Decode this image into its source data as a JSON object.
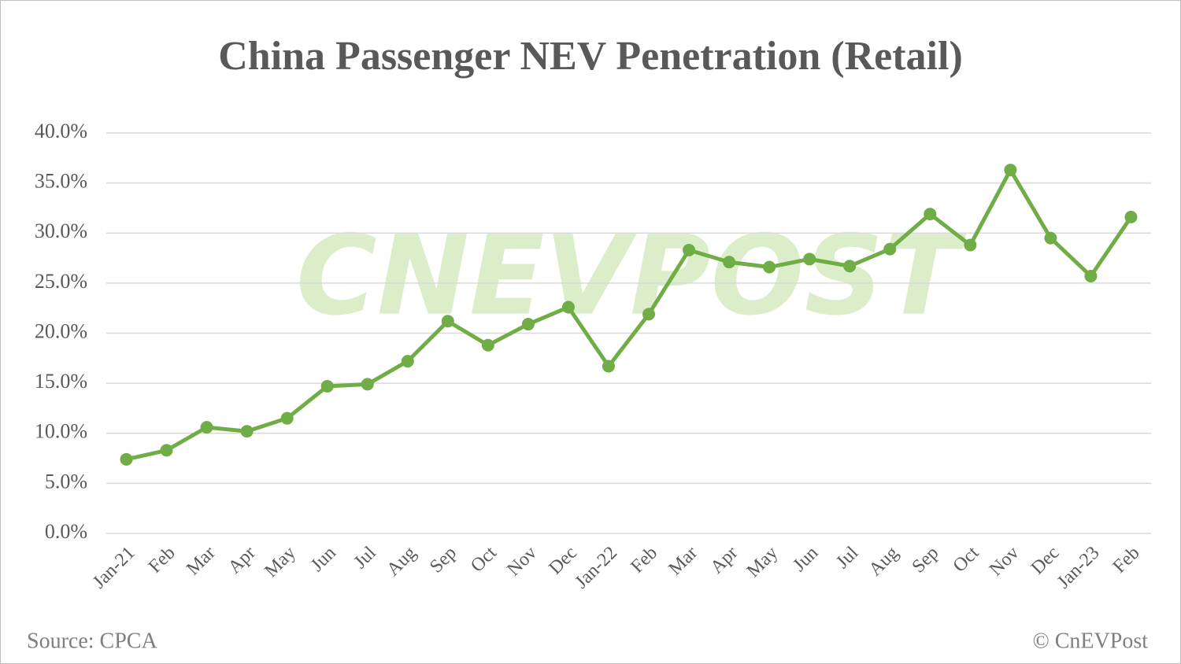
{
  "chart_data": {
    "type": "line",
    "title": "China Passenger NEV Penetration (Retail)",
    "watermark": "CNEVPOST",
    "source": "Source: CPCA",
    "credit": "© CnEVPost",
    "categories": [
      "Jan-21",
      "Feb",
      "Mar",
      "Apr",
      "May",
      "Jun",
      "Jul",
      "Aug",
      "Sep",
      "Oct",
      "Nov",
      "Dec",
      "Jan-22",
      "Feb",
      "Mar",
      "Apr",
      "May",
      "Jun",
      "Jul",
      "Aug",
      "Sep",
      "Oct",
      "Nov",
      "Dec",
      "Jan-23",
      "Feb"
    ],
    "series": [
      {
        "color": "#70ad47",
        "values": [
          7.4,
          8.3,
          10.6,
          10.2,
          11.5,
          14.7,
          14.9,
          17.2,
          21.2,
          18.8,
          20.9,
          22.6,
          16.7,
          21.9,
          28.3,
          27.1,
          26.6,
          27.4,
          26.7,
          28.4,
          31.9,
          28.8,
          36.3,
          29.5,
          25.7,
          31.6
        ]
      }
    ],
    "ylim": [
      0,
      40
    ],
    "yticks": [
      {
        "value": 0,
        "label": "0.0%"
      },
      {
        "value": 5,
        "label": "5.0%"
      },
      {
        "value": 10,
        "label": "10.0%"
      },
      {
        "value": 15,
        "label": "15.0%"
      },
      {
        "value": 20,
        "label": "20.0%"
      },
      {
        "value": 25,
        "label": "25.0%"
      },
      {
        "value": 30,
        "label": "30.0%"
      },
      {
        "value": 35,
        "label": "35.0%"
      },
      {
        "value": 40,
        "label": "40.0%"
      }
    ],
    "grid": true
  }
}
